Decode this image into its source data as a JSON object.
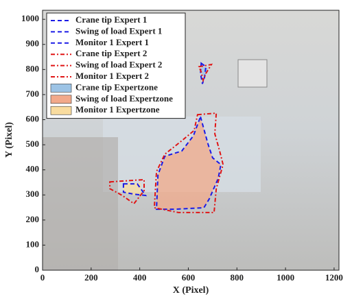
{
  "chart_data": {
    "type": "polygon",
    "xlabel": "X (Pixel)",
    "ylabel": "Y (Pixel)",
    "xlim": [
      0,
      1220
    ],
    "ylim": [
      0,
      1036
    ],
    "xticks": [
      0,
      200,
      400,
      600,
      800,
      1000,
      1200
    ],
    "yticks": [
      0,
      100,
      200,
      300,
      400,
      500,
      600,
      700,
      800,
      900,
      1000
    ],
    "legend": "upper left",
    "series": [
      {
        "name": "Crane tip Expert 1",
        "color": "#1a1ae6",
        "style": "dash",
        "x": [
          653,
          672,
          667,
          658,
          650
        ],
        "y": [
          825,
          811,
          770,
          743,
          784
        ]
      },
      {
        "name": "Swing of load Expert 1",
        "color": "#1a1ae6",
        "style": "dash",
        "x": [
          650,
          681,
          700,
          734,
          723,
          686,
          664,
          545,
          469,
          475,
          503,
          573,
          621
        ],
        "y": [
          612,
          503,
          448,
          421,
          366,
          284,
          249,
          243,
          243,
          380,
          454,
          475,
          536
        ]
      },
      {
        "name": "Monitor 1 Expert 1",
        "color": "#1a1ae6",
        "style": "dash",
        "x": [
          333,
          390,
          424,
          376,
          333
        ],
        "y": [
          344,
          344,
          298,
          303,
          311
        ]
      },
      {
        "name": "Crane tip Expert 2",
        "color": "#e01414",
        "style": "dashdot",
        "x": [
          644,
          695,
          672,
          661,
          653
        ],
        "y": [
          811,
          820,
          784,
          757,
          790
        ]
      },
      {
        "name": "Swing of load Expert 2",
        "color": "#e01414",
        "style": "dashdot",
        "x": [
          638,
          715,
          709,
          729,
          743,
          715,
          706,
          559,
          460,
          469,
          503,
          573,
          624
        ],
        "y": [
          620,
          626,
          544,
          475,
          421,
          325,
          230,
          230,
          249,
          393,
          462,
          516,
          557
        ]
      },
      {
        "name": "Monitor 1 Expert 2",
        "color": "#e01414",
        "style": "dashdot",
        "x": [
          277,
          418,
          418,
          376,
          328,
          277
        ],
        "y": [
          352,
          361,
          317,
          265,
          298,
          325
        ]
      },
      {
        "name": "Crane tip Expertzone",
        "color": "#9cc3e5",
        "style": "fill",
        "x": [
          655,
          681,
          667,
          655
        ],
        "y": [
          811,
          806,
          770,
          784
        ]
      },
      {
        "name": "Swing of load Expertzone",
        "color": "#f2a98a",
        "style": "fill",
        "x": [
          650,
          681,
          700,
          734,
          723,
          686,
          664,
          545,
          469,
          475,
          503,
          573,
          621
        ],
        "y": [
          612,
          503,
          448,
          421,
          366,
          284,
          249,
          243,
          243,
          380,
          454,
          475,
          536
        ]
      },
      {
        "name": "Monitor 1 Expertzone",
        "color": "#f9dc9f",
        "style": "fill",
        "x": [
          333,
          404,
          404,
          376,
          333
        ],
        "y": [
          347,
          347,
          306,
          298,
          311
        ]
      }
    ]
  }
}
